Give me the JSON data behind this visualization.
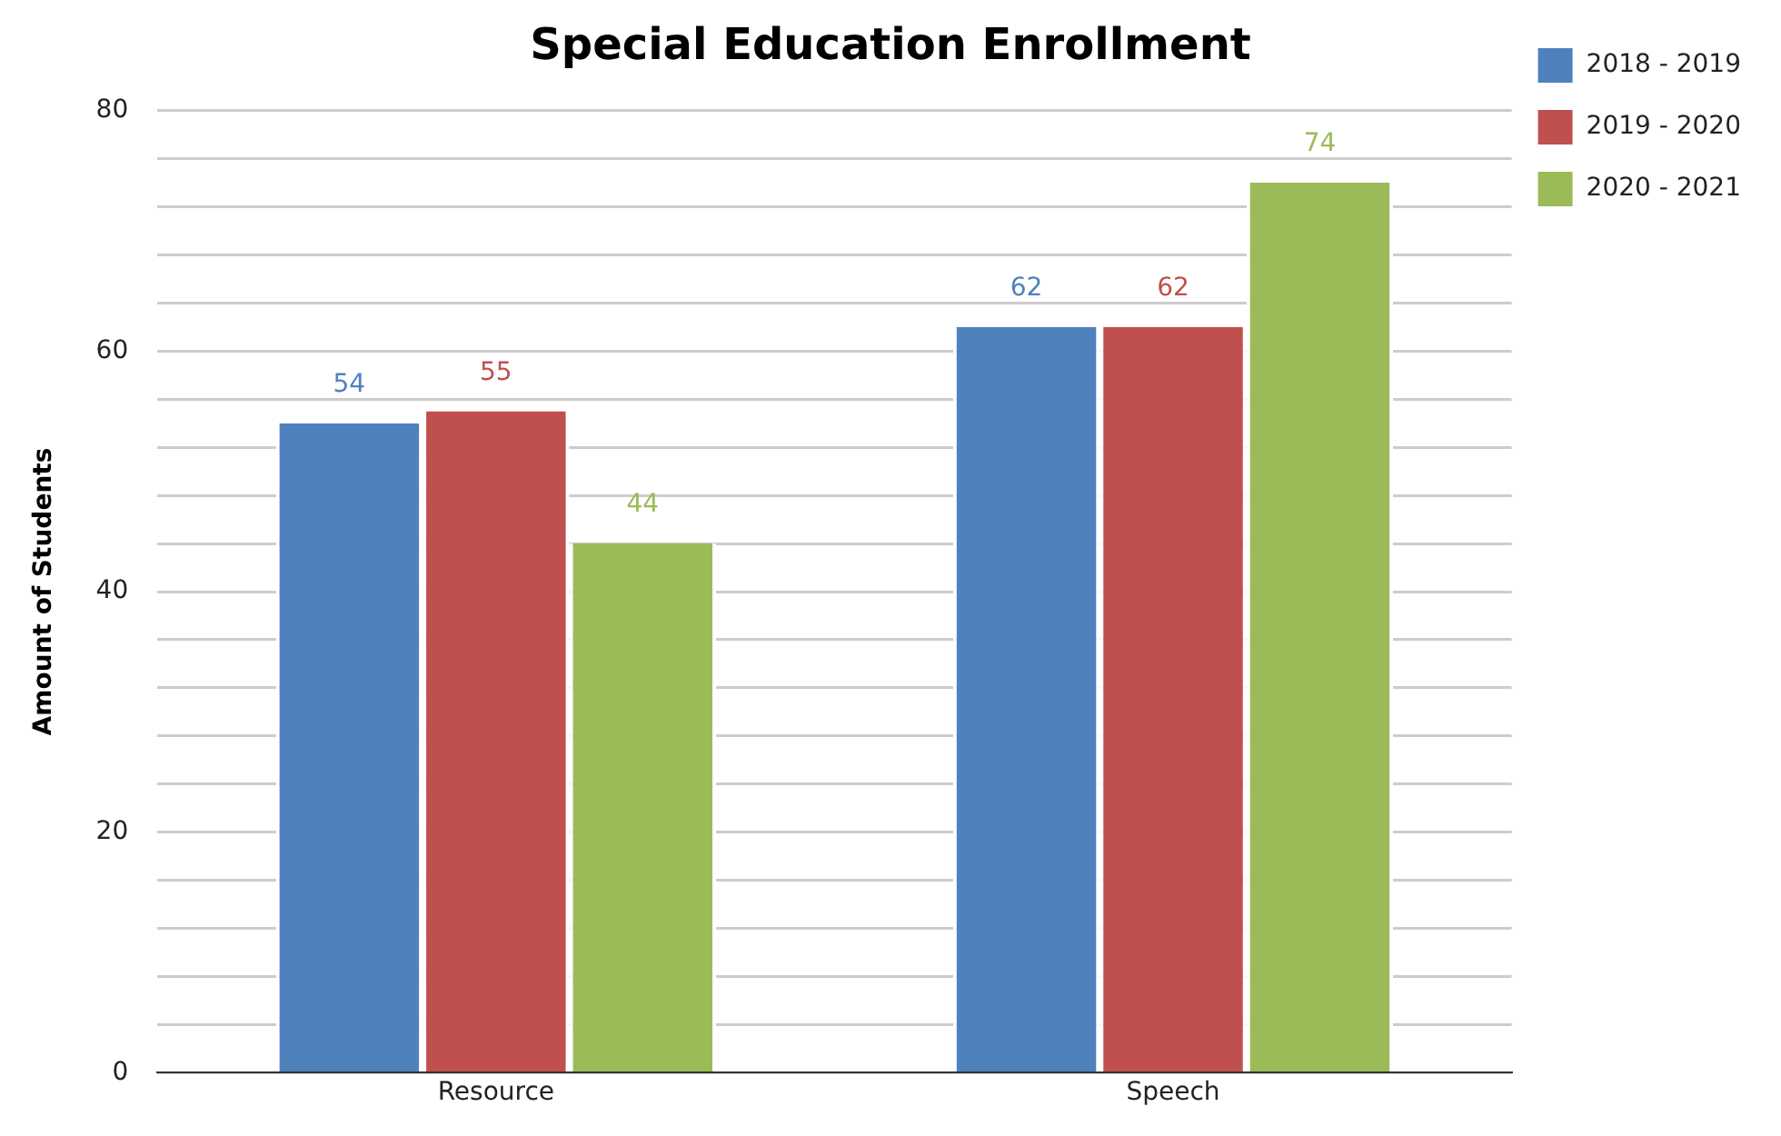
{
  "chart_data": {
    "type": "bar",
    "title": "Special Education Enrollment",
    "ylabel": "Amount of Students",
    "categories": [
      "Resource",
      "Speech"
    ],
    "series": [
      {
        "name": "2018 - 2019",
        "color": "#4f81bd",
        "values": [
          54,
          62
        ]
      },
      {
        "name": "2019 - 2020",
        "color": "#c0504d",
        "values": [
          55,
          62
        ]
      },
      {
        "name": "2020 - 2021",
        "color": "#9bbb59",
        "values": [
          44,
          74
        ]
      }
    ],
    "ylim": [
      0,
      80
    ],
    "yticks": [
      0,
      {
        "value": 4,
        "label": null
      },
      {
        "value": 8,
        "label": null
      },
      {
        "value": 12,
        "label": null
      },
      {
        "value": 16,
        "label": null
      },
      20,
      {
        "value": 24,
        "label": null
      },
      {
        "value": 28,
        "label": null
      },
      {
        "value": 32,
        "label": null
      },
      {
        "value": 36,
        "label": null
      },
      40,
      {
        "value": 44,
        "label": null
      },
      {
        "value": 48,
        "label": null
      },
      {
        "value": 52,
        "label": null
      },
      {
        "value": 56,
        "label": null
      },
      60,
      {
        "value": 64,
        "label": null
      },
      {
        "value": 68,
        "label": null
      },
      {
        "value": 72,
        "label": null
      },
      {
        "value": 76,
        "label": null
      },
      80
    ],
    "grid": "y",
    "legend": "top right",
    "data_labels": true
  }
}
